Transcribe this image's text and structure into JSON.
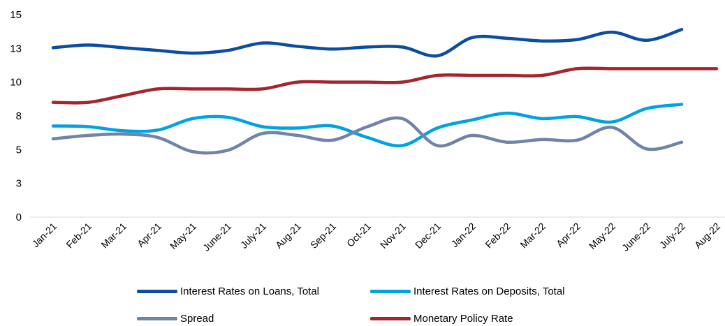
{
  "chart_data": {
    "type": "line",
    "categories": [
      "Jan-21",
      "Feb-21",
      "Mar-21",
      "Apr-21",
      "May-21",
      "June-21",
      "July-21",
      "Aug-21",
      "Sep-21",
      "Oct-21",
      "Nov-21",
      "Dec-21",
      "Jan-22",
      "Feb-22",
      "Mar-22",
      "Apr-22",
      "May-22",
      "June-22",
      "July-22",
      "Aug-22"
    ],
    "y_ticks": [
      "0",
      "3",
      "5",
      "8",
      "10",
      "13",
      "15"
    ],
    "ylim": [
      0,
      15
    ],
    "grid": false,
    "legend_position": "bottom",
    "series": [
      {
        "name": "Interest Rates on Loans, Total",
        "color": "#0c4da2",
        "values": [
          12.55,
          12.75,
          12.55,
          12.35,
          12.15,
          12.35,
          12.9,
          12.65,
          12.45,
          12.6,
          12.6,
          11.95,
          13.3,
          13.25,
          13.05,
          13.15,
          13.7,
          13.1,
          13.9,
          null
        ]
      },
      {
        "name": "Interest Rates on Deposits, Total",
        "color": "#00a3e0",
        "values": [
          6.75,
          6.7,
          6.4,
          6.45,
          7.3,
          7.4,
          6.7,
          6.6,
          6.75,
          5.9,
          5.3,
          6.6,
          7.2,
          7.7,
          7.3,
          7.45,
          7.05,
          8.05,
          8.35,
          null
        ]
      },
      {
        "name": "Spread",
        "color": "#7083a9",
        "values": [
          5.8,
          6.05,
          6.15,
          5.9,
          4.85,
          4.95,
          6.2,
          6.05,
          5.7,
          6.7,
          7.3,
          5.3,
          6.05,
          5.55,
          5.75,
          5.7,
          6.65,
          5.05,
          5.55,
          null
        ]
      },
      {
        "name": "Monetary Policy Rate",
        "color": "#a4262c",
        "values": [
          8.5,
          8.5,
          9.0,
          9.5,
          9.5,
          9.5,
          9.5,
          10.0,
          10.0,
          10.0,
          10.0,
          10.5,
          10.5,
          10.5,
          10.5,
          11.0,
          11.0,
          11.0,
          11.0,
          11.0
        ]
      }
    ]
  }
}
